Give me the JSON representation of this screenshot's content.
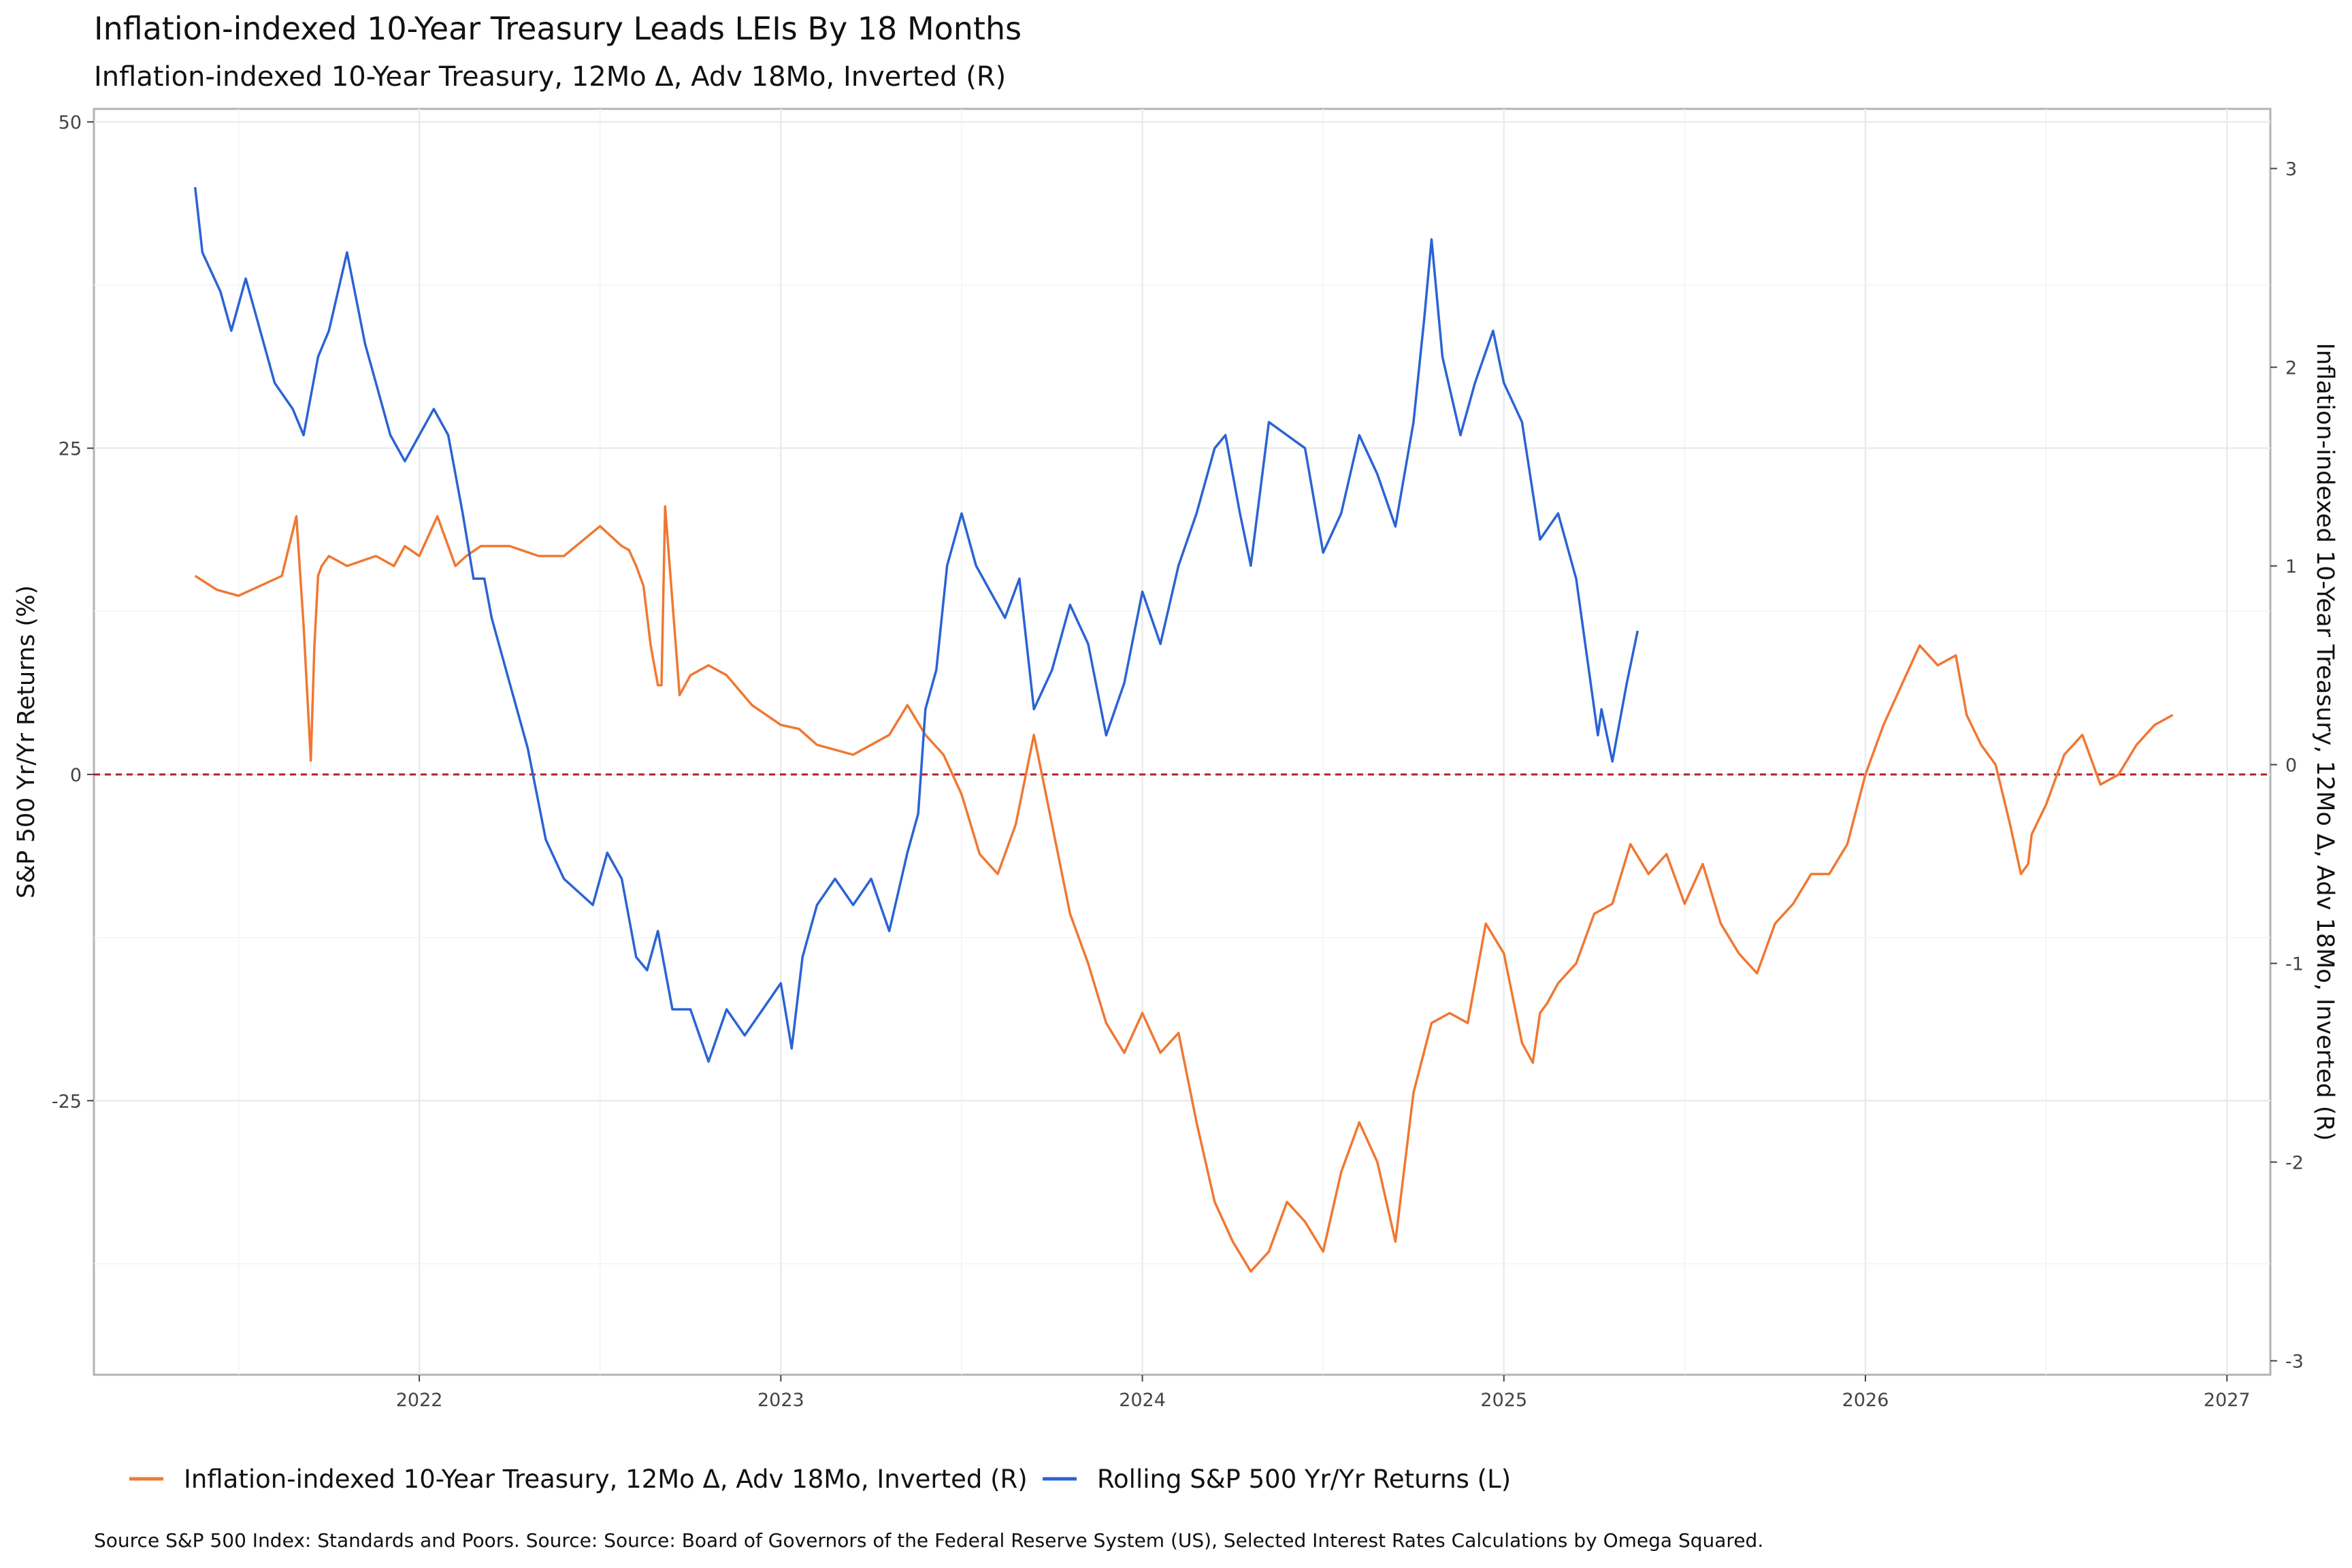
{
  "chart_data": {
    "type": "line",
    "title": "Inflation-indexed 10-Year Treasury  Leads LEIs By  18  Months",
    "subtitle": "Inflation-indexed 10-Year Treasury, 12Mo Δ, Adv 18Mo, Inverted (R)",
    "ylabel_left": "S&P 500 Yr/Yr Returns (%)",
    "ylabel_right": "Inflation-indexed 10-Year Treasury, 12Mo Δ, Adv 18Mo, Inverted (R)",
    "caption": "Source S&P 500 Index: Standards and Poors. Source: Source: Board of Governors of the Federal Reserve System (US), Selected Interest Rates Calculations by Omega Squared.",
    "x_ticks": [
      "2022",
      "2023",
      "2024",
      "2025",
      "2026",
      "2027"
    ],
    "xlim": [
      2021.1,
      2027.12
    ],
    "y_left_ticks": [
      "50",
      "25",
      "0",
      "-25"
    ],
    "ylim_left": [
      -46,
      51
    ],
    "y_right_ticks": [
      "3",
      "2",
      "1",
      "0",
      "-1",
      "-2",
      "-3"
    ],
    "ylim_right": [
      -3.07,
      3.3
    ],
    "zero_line": {
      "value": 0,
      "color": "#b22222",
      "style": "dashed"
    },
    "grid": true,
    "legend_position": "bottom",
    "series": [
      {
        "name": "Inflation-indexed 10-Year Treasury, 12Mo Δ, Adv 18Mo, Inverted (R)",
        "axis": "right",
        "color": "#f07832",
        "x": [
          2021.38,
          2021.44,
          2021.5,
          2021.56,
          2021.62,
          2021.66,
          2021.68,
          2021.7,
          2021.71,
          2021.72,
          2021.73,
          2021.75,
          2021.8,
          2021.88,
          2021.93,
          2021.96,
          2022.0,
          2022.05,
          2022.08,
          2022.1,
          2022.13,
          2022.17,
          2022.25,
          2022.33,
          2022.4,
          2022.5,
          2022.56,
          2022.58,
          2022.6,
          2022.62,
          2022.64,
          2022.66,
          2022.67,
          2022.68,
          2022.72,
          2022.75,
          2022.8,
          2022.85,
          2022.92,
          2023.0,
          2023.05,
          2023.1,
          2023.2,
          2023.3,
          2023.35,
          2023.4,
          2023.45,
          2023.5,
          2023.55,
          2023.6,
          2023.65,
          2023.7,
          2023.75,
          2023.8,
          2023.85,
          2023.9,
          2023.95,
          2024.0,
          2024.05,
          2024.1,
          2024.15,
          2024.2,
          2024.25,
          2024.3,
          2024.35,
          2024.4,
          2024.45,
          2024.5,
          2024.55,
          2024.6,
          2024.65,
          2024.7,
          2024.75,
          2024.8,
          2024.85,
          2024.9,
          2024.95,
          2025.0,
          2025.05,
          2025.08,
          2025.1,
          2025.12,
          2025.15,
          2025.2,
          2025.25,
          2025.3,
          2025.35,
          2025.4,
          2025.45,
          2025.5,
          2025.55,
          2025.6,
          2025.65,
          2025.7,
          2025.75,
          2025.8,
          2025.85,
          2025.9,
          2025.95,
          2026.0,
          2026.05,
          2026.1,
          2026.15,
          2026.2,
          2026.25,
          2026.28,
          2026.32,
          2026.36,
          2026.4,
          2026.43,
          2026.45,
          2026.46,
          2026.5,
          2026.55,
          2026.6,
          2026.65,
          2026.7,
          2026.75,
          2026.8,
          2026.85
        ],
        "y": [
          0.95,
          0.88,
          0.85,
          0.9,
          0.95,
          1.25,
          0.7,
          0.02,
          0.6,
          0.95,
          1.0,
          1.05,
          1.0,
          1.05,
          1.0,
          1.1,
          1.05,
          1.25,
          1.1,
          1.0,
          1.05,
          1.1,
          1.1,
          1.05,
          1.05,
          1.2,
          1.1,
          1.08,
          1.0,
          0.9,
          0.6,
          0.4,
          0.4,
          1.3,
          0.35,
          0.45,
          0.5,
          0.45,
          0.3,
          0.2,
          0.18,
          0.1,
          0.05,
          0.15,
          0.3,
          0.15,
          0.05,
          -0.15,
          -0.45,
          -0.55,
          -0.3,
          0.15,
          -0.3,
          -0.75,
          -1.0,
          -1.3,
          -1.45,
          -1.25,
          -1.45,
          -1.35,
          -1.8,
          -2.2,
          -2.4,
          -2.55,
          -2.45,
          -2.2,
          -2.3,
          -2.45,
          -2.05,
          -1.8,
          -2.0,
          -2.4,
          -1.65,
          -1.3,
          -1.25,
          -1.3,
          -0.8,
          -0.95,
          -1.4,
          -1.5,
          -1.25,
          -1.2,
          -1.1,
          -1.0,
          -0.75,
          -0.7,
          -0.4,
          -0.55,
          -0.45,
          -0.7,
          -0.5,
          -0.8,
          -0.95,
          -1.05,
          -0.8,
          -0.7,
          -0.55,
          -0.55,
          -0.4,
          -0.05,
          0.2,
          0.4,
          0.6,
          0.5,
          0.55,
          0.25,
          0.1,
          0.0,
          -0.3,
          -0.55,
          -0.5,
          -0.35,
          -0.2,
          0.05,
          0.15,
          -0.1,
          -0.05,
          0.1,
          0.2,
          0.25
        ]
      },
      {
        "name": "Rolling S&P 500 Yr/Yr Returns (L)",
        "axis": "left",
        "color": "#2b63d4",
        "x": [
          2021.38,
          2021.4,
          2021.45,
          2021.48,
          2021.52,
          2021.55,
          2021.6,
          2021.65,
          2021.68,
          2021.72,
          2021.75,
          2021.8,
          2021.85,
          2021.88,
          2021.92,
          2021.96,
          2022.0,
          2022.04,
          2022.08,
          2022.12,
          2022.15,
          2022.18,
          2022.2,
          2022.25,
          2022.3,
          2022.35,
          2022.4,
          2022.44,
          2022.48,
          2022.52,
          2022.56,
          2022.6,
          2022.63,
          2022.66,
          2022.7,
          2022.75,
          2022.8,
          2022.85,
          2022.9,
          2022.95,
          2023.0,
          2023.03,
          2023.06,
          2023.1,
          2023.15,
          2023.2,
          2023.25,
          2023.3,
          2023.35,
          2023.38,
          2023.4,
          2023.43,
          2023.46,
          2023.5,
          2023.54,
          2023.58,
          2023.62,
          2023.66,
          2023.7,
          2023.75,
          2023.8,
          2023.85,
          2023.9,
          2023.95,
          2024.0,
          2024.05,
          2024.1,
          2024.15,
          2024.2,
          2024.23,
          2024.27,
          2024.3,
          2024.35,
          2024.4,
          2024.45,
          2024.5,
          2024.55,
          2024.6,
          2024.65,
          2024.7,
          2024.75,
          2024.78,
          2024.8,
          2024.83,
          2024.88,
          2024.92,
          2024.97,
          2025.0,
          2025.05,
          2025.1,
          2025.15,
          2025.2,
          2025.24,
          2025.26,
          2025.27,
          2025.3,
          2025.34,
          2025.37
        ],
        "y": [
          45,
          40,
          37,
          34,
          38,
          35,
          30,
          28,
          26,
          32,
          34,
          40,
          33,
          30,
          26,
          24,
          26,
          28,
          26,
          20,
          15,
          15,
          12,
          7,
          2,
          -5,
          -8,
          -9,
          -10,
          -6,
          -8,
          -14,
          -15,
          -12,
          -18,
          -18,
          -22,
          -18,
          -20,
          -18,
          -16,
          -21,
          -14,
          -10,
          -8,
          -10,
          -8,
          -12,
          -6,
          -3,
          5,
          8,
          16,
          20,
          16,
          14,
          12,
          15,
          5,
          8,
          13,
          10,
          3,
          7,
          14,
          10,
          16,
          20,
          25,
          26,
          20,
          16,
          27,
          26,
          25,
          17,
          20,
          26,
          23,
          19,
          27,
          35,
          41,
          32,
          26,
          30,
          34,
          30,
          27,
          18,
          20,
          15,
          7,
          3,
          5,
          1,
          7,
          11
        ]
      }
    ]
  }
}
